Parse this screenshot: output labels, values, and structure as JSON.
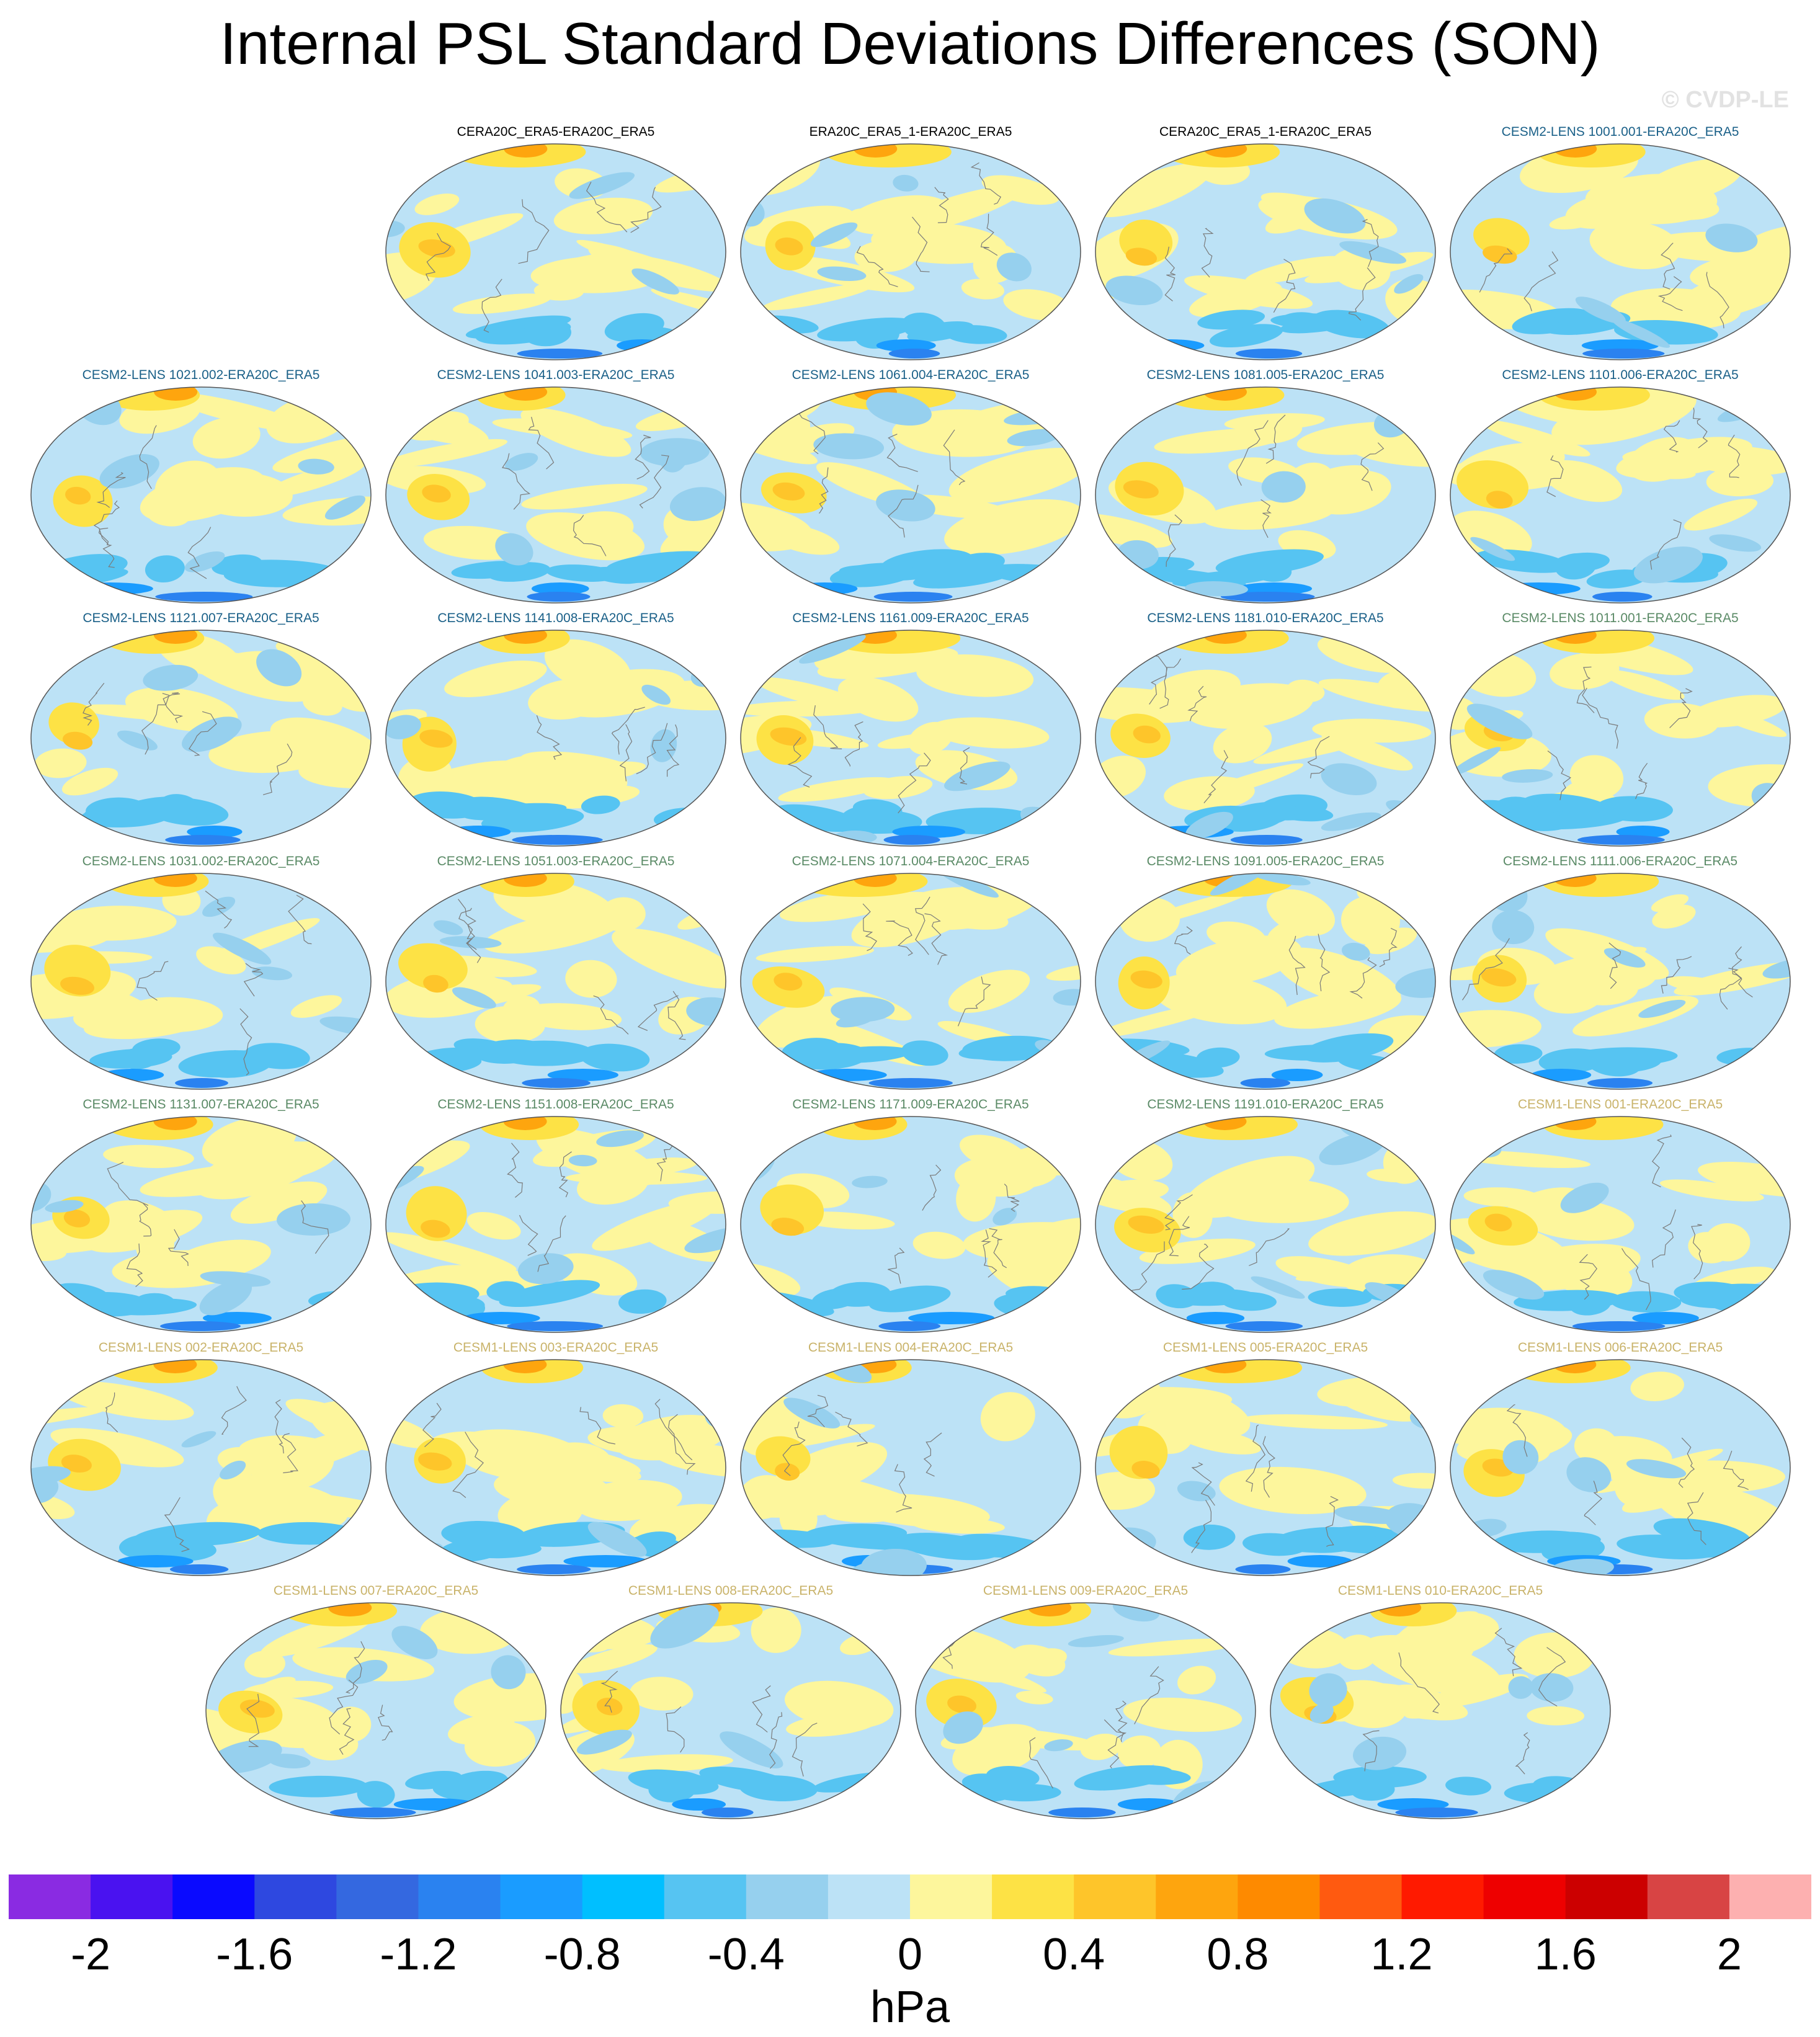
{
  "title": "Internal PSL Standard Deviations Differences (SON)",
  "copyright": "© CVDP-LE",
  "label_colors": {
    "reference": "#000000",
    "cesm2_a": "#1a6088",
    "cesm2_b": "#5a8a66",
    "cesm1": "#c9b36a"
  },
  "panels": [
    {
      "label": "CERA20C_ERA5-ERA20C_ERA5",
      "group": "reference"
    },
    {
      "label": "ERA20C_ERA5_1-ERA20C_ERA5",
      "group": "reference"
    },
    {
      "label": "CERA20C_ERA5_1-ERA20C_ERA5",
      "group": "reference"
    },
    {
      "label": "CESM2-LENS 1001.001-ERA20C_ERA5",
      "group": "cesm2_a"
    },
    {
      "label": "CESM2-LENS 1021.002-ERA20C_ERA5",
      "group": "cesm2_a"
    },
    {
      "label": "CESM2-LENS 1041.003-ERA20C_ERA5",
      "group": "cesm2_a"
    },
    {
      "label": "CESM2-LENS 1061.004-ERA20C_ERA5",
      "group": "cesm2_a"
    },
    {
      "label": "CESM2-LENS 1081.005-ERA20C_ERA5",
      "group": "cesm2_a"
    },
    {
      "label": "CESM2-LENS 1101.006-ERA20C_ERA5",
      "group": "cesm2_a"
    },
    {
      "label": "CESM2-LENS 1121.007-ERA20C_ERA5",
      "group": "cesm2_a"
    },
    {
      "label": "CESM2-LENS 1141.008-ERA20C_ERA5",
      "group": "cesm2_a"
    },
    {
      "label": "CESM2-LENS 1161.009-ERA20C_ERA5",
      "group": "cesm2_a"
    },
    {
      "label": "CESM2-LENS 1181.010-ERA20C_ERA5",
      "group": "cesm2_a"
    },
    {
      "label": "CESM2-LENS 1011.001-ERA20C_ERA5",
      "group": "cesm2_b"
    },
    {
      "label": "CESM2-LENS 1031.002-ERA20C_ERA5",
      "group": "cesm2_b"
    },
    {
      "label": "CESM2-LENS 1051.003-ERA20C_ERA5",
      "group": "cesm2_b"
    },
    {
      "label": "CESM2-LENS 1071.004-ERA20C_ERA5",
      "group": "cesm2_b"
    },
    {
      "label": "CESM2-LENS 1091.005-ERA20C_ERA5",
      "group": "cesm2_b"
    },
    {
      "label": "CESM2-LENS 1111.006-ERA20C_ERA5",
      "group": "cesm2_b"
    },
    {
      "label": "CESM2-LENS 1131.007-ERA20C_ERA5",
      "group": "cesm2_b"
    },
    {
      "label": "CESM2-LENS 1151.008-ERA20C_ERA5",
      "group": "cesm2_b"
    },
    {
      "label": "CESM2-LENS 1171.009-ERA20C_ERA5",
      "group": "cesm2_b"
    },
    {
      "label": "CESM2-LENS 1191.010-ERA20C_ERA5",
      "group": "cesm2_b"
    },
    {
      "label": "CESM1-LENS 001-ERA20C_ERA5",
      "group": "cesm1"
    },
    {
      "label": "CESM1-LENS 002-ERA20C_ERA5",
      "group": "cesm1"
    },
    {
      "label": "CESM1-LENS 003-ERA20C_ERA5",
      "group": "cesm1"
    },
    {
      "label": "CESM1-LENS 004-ERA20C_ERA5",
      "group": "cesm1"
    },
    {
      "label": "CESM1-LENS 005-ERA20C_ERA5",
      "group": "cesm1"
    },
    {
      "label": "CESM1-LENS 006-ERA20C_ERA5",
      "group": "cesm1"
    },
    {
      "label": "CESM1-LENS 007-ERA20C_ERA5",
      "group": "cesm1"
    },
    {
      "label": "CESM1-LENS 008-ERA20C_ERA5",
      "group": "cesm1"
    },
    {
      "label": "CESM1-LENS 009-ERA20C_ERA5",
      "group": "cesm1"
    },
    {
      "label": "CESM1-LENS 010-ERA20C_ERA5",
      "group": "cesm1"
    }
  ],
  "colorbar": {
    "colors": [
      "#8a2be2",
      "#4a12f0",
      "#0a0aff",
      "#2e48e0",
      "#3468e0",
      "#2a82f0",
      "#1a9cff",
      "#00bfff",
      "#56c4f2",
      "#96d0ee",
      "#bce2f6",
      "#fdf69c",
      "#fde245",
      "#fec52a",
      "#fea50e",
      "#fe8a00",
      "#ff5a10",
      "#ff1a00",
      "#ee0000",
      "#cc0000",
      "#d84444",
      "#fdb0b0"
    ],
    "tick_labels": [
      "-2",
      "-1.6",
      "-1.2",
      "-0.8",
      "-0.4",
      "0",
      "0.4",
      "0.8",
      "1.2",
      "1.6",
      "2"
    ],
    "units": "hPa"
  }
}
